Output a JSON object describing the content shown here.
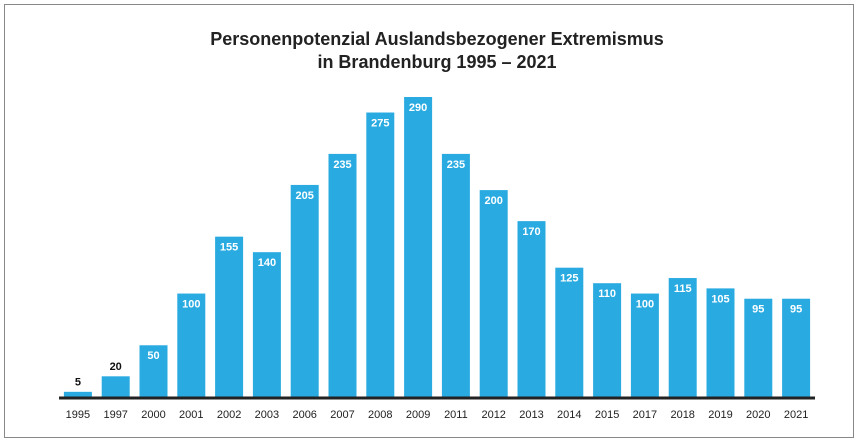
{
  "chart_data": {
    "type": "bar",
    "title": [
      "Personenpotenzial Auslandsbezogener Extremismus",
      "in Brandenburg 1995 – 2021"
    ],
    "categories": [
      "1995",
      "1997",
      "2000",
      "2001",
      "2002",
      "2003",
      "2006",
      "2007",
      "2008",
      "2009",
      "2011",
      "2012",
      "2013",
      "2014",
      "2015",
      "2017",
      "2018",
      "2019",
      "2020",
      "2021"
    ],
    "values": [
      5,
      20,
      50,
      100,
      155,
      140,
      205,
      235,
      275,
      290,
      235,
      200,
      170,
      125,
      110,
      100,
      115,
      105,
      95,
      95
    ],
    "color": "#29abe2"
  }
}
